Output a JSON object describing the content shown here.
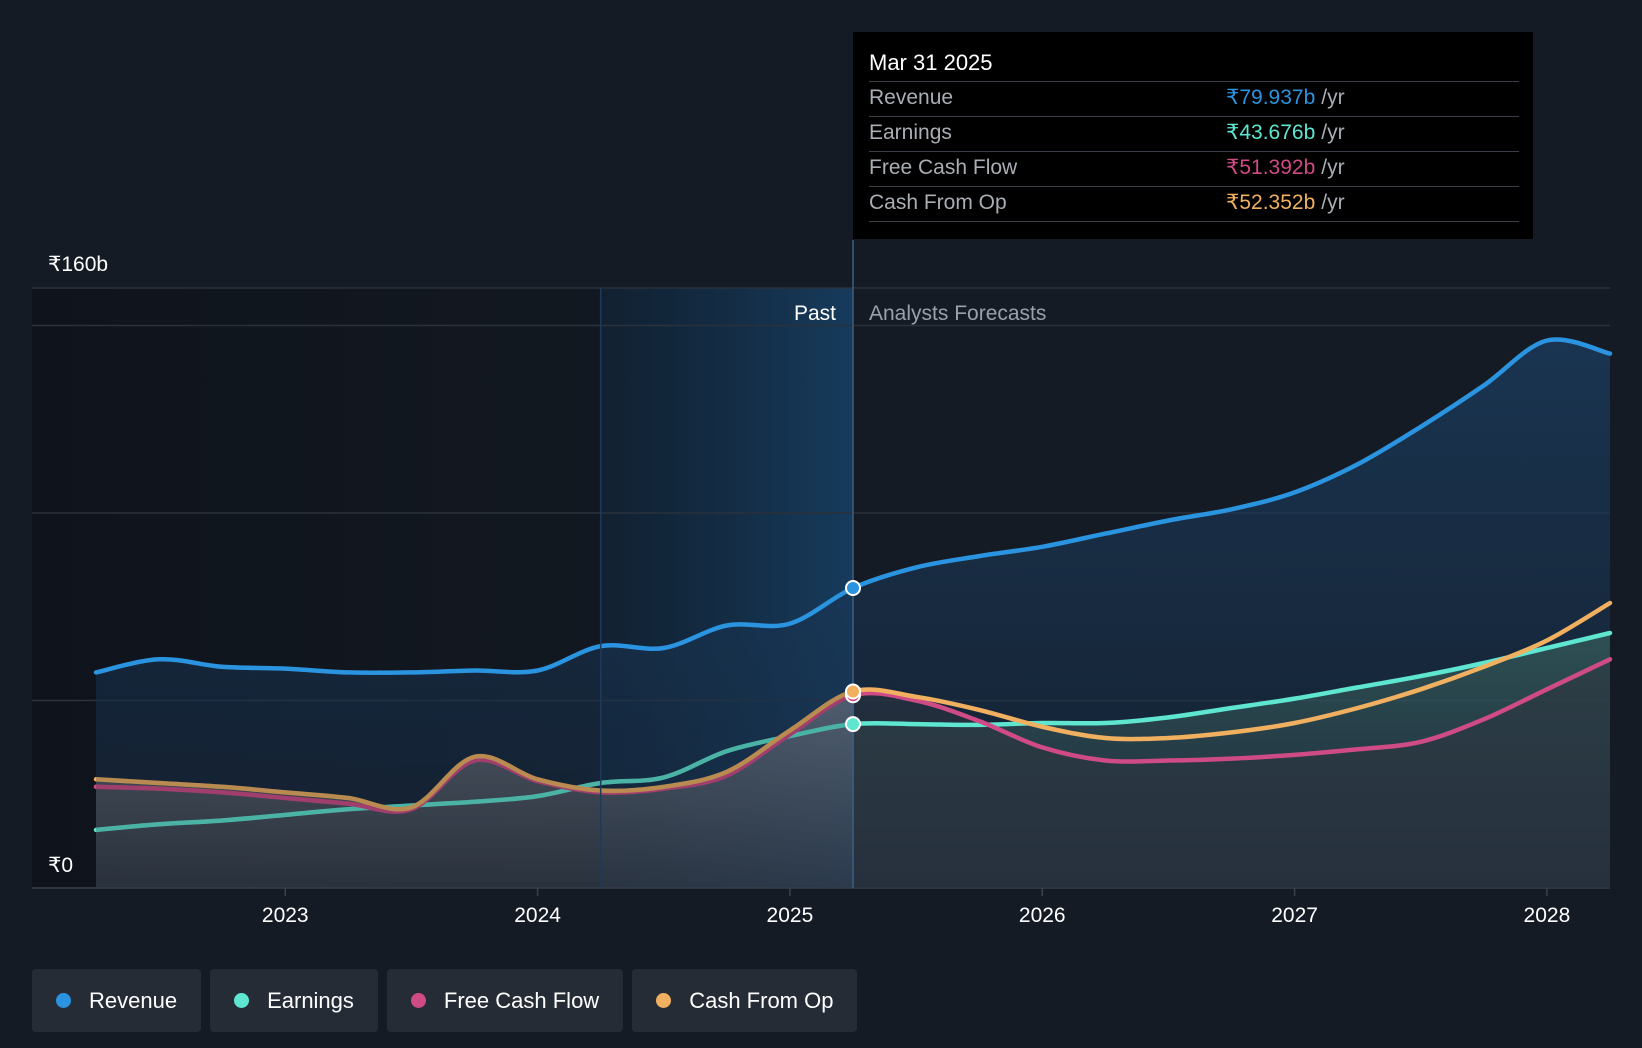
{
  "tooltip": {
    "date": "Mar 31 2025",
    "rows": [
      {
        "label": "Revenue",
        "value": "₹79.937b",
        "unit": "/yr",
        "color": "#2b94e0"
      },
      {
        "label": "Earnings",
        "value": "₹43.676b",
        "unit": "/yr",
        "color": "#5ee6d0"
      },
      {
        "label": "Free Cash Flow",
        "value": "₹51.392b",
        "unit": "/yr",
        "color": "#cf4b86"
      },
      {
        "label": "Cash From Op",
        "value": "₹52.352b",
        "unit": "/yr",
        "color": "#f0b060"
      }
    ]
  },
  "legend": [
    {
      "label": "Revenue",
      "color": "#2b94e0"
    },
    {
      "label": "Earnings",
      "color": "#5ee6d0"
    },
    {
      "label": "Free Cash Flow",
      "color": "#cf4b86"
    },
    {
      "label": "Cash From Op",
      "color": "#f0b060"
    }
  ],
  "chart_data": {
    "type": "line",
    "title": "",
    "ylabel_top": "₹160b",
    "ylabel_bottom": "₹0",
    "ylim": [
      0,
      160
    ],
    "xlim": [
      2022.25,
      2028.25
    ],
    "x_ticks": [
      2023,
      2024,
      2025,
      2026,
      2027,
      2028
    ],
    "x_tick_labels": [
      "2023",
      "2024",
      "2025",
      "2026",
      "2027",
      "2028"
    ],
    "gridlines": [
      0,
      50,
      100,
      150,
      160
    ],
    "past_label": "Past",
    "forecast_label": "Analysts Forecasts",
    "divider_x": 2025.25,
    "highlight_start_x": 2024.25,
    "series": [
      {
        "name": "Revenue",
        "color": "#2b94e0",
        "x": [
          2022.25,
          2022.5,
          2022.75,
          2023.0,
          2023.25,
          2023.5,
          2023.75,
          2024.0,
          2024.25,
          2024.5,
          2024.75,
          2025.0,
          2025.25,
          2025.5,
          2025.75,
          2026.0,
          2026.25,
          2026.5,
          2026.75,
          2027.0,
          2027.25,
          2027.5,
          2027.75,
          2028.0,
          2028.25
        ],
        "y": [
          57.5,
          61,
          59,
          58.5,
          57.5,
          57.5,
          58,
          58,
          64.5,
          64,
          70,
          70.5,
          80,
          85.5,
          88.5,
          91,
          94.5,
          98,
          101,
          105.5,
          113,
          123,
          134,
          146,
          142.5
        ]
      },
      {
        "name": "Earnings",
        "color": "#5ee6d0",
        "x": [
          2022.25,
          2022.5,
          2022.75,
          2023.0,
          2023.25,
          2023.5,
          2023.75,
          2024.0,
          2024.25,
          2024.5,
          2024.75,
          2025.0,
          2025.25,
          2025.5,
          2025.75,
          2026.0,
          2026.25,
          2026.5,
          2026.75,
          2027.0,
          2027.25,
          2027.5,
          2027.75,
          2028.0,
          2028.25
        ],
        "y": [
          15.5,
          17,
          18,
          19.5,
          21,
          22,
          23,
          24.5,
          28,
          29.5,
          36.5,
          40.5,
          43.7,
          43.7,
          43.5,
          44,
          44,
          45.5,
          48,
          50.5,
          53.5,
          56.5,
          60,
          64,
          68
        ]
      },
      {
        "name": "Free Cash Flow",
        "color": "#cf4b86",
        "x": [
          2022.25,
          2022.5,
          2022.75,
          2023.0,
          2023.25,
          2023.5,
          2023.75,
          2024.0,
          2024.25,
          2024.5,
          2024.75,
          2025.0,
          2025.25,
          2025.5,
          2025.75,
          2026.0,
          2026.25,
          2026.5,
          2026.75,
          2027.0,
          2027.25,
          2027.5,
          2027.75,
          2028.0,
          2028.25
        ],
        "y": [
          27,
          26.5,
          25.5,
          24,
          22.5,
          21,
          34,
          28.5,
          25.5,
          26.5,
          30,
          41,
          51.4,
          50,
          44.5,
          37.5,
          34,
          34,
          34.5,
          35.5,
          37,
          39,
          45,
          53,
          61
        ]
      },
      {
        "name": "Cash From Op",
        "color": "#f0b060",
        "x": [
          2022.25,
          2022.5,
          2022.75,
          2023.0,
          2023.25,
          2023.5,
          2023.75,
          2024.0,
          2024.25,
          2024.5,
          2024.75,
          2025.0,
          2025.25,
          2025.5,
          2025.75,
          2026.0,
          2026.25,
          2026.5,
          2026.75,
          2027.0,
          2027.25,
          2027.5,
          2027.75,
          2028.0,
          2028.25
        ],
        "y": [
          29,
          28,
          27,
          25.5,
          24,
          21.5,
          35,
          29,
          26,
          27,
          31,
          42,
          52.4,
          51,
          47.5,
          43,
          40,
          40,
          41.5,
          44,
          48,
          53,
          59,
          66,
          76
        ]
      }
    ]
  }
}
